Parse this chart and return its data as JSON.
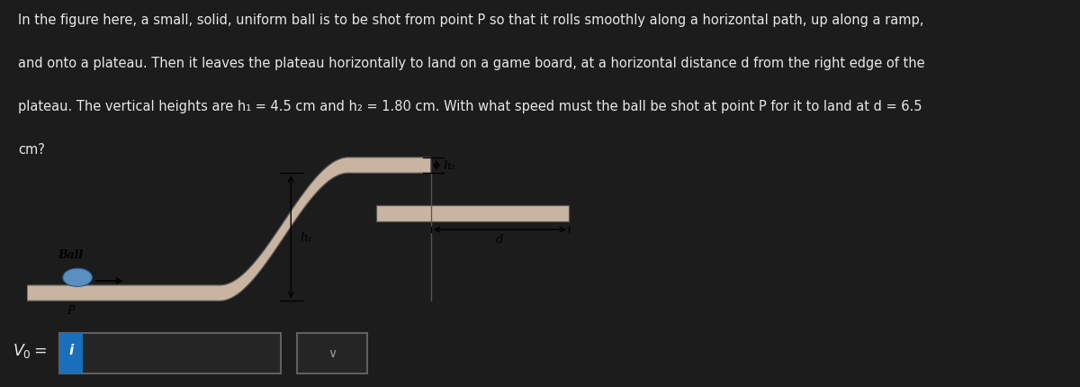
{
  "bg_color": "#1c1c1c",
  "text_color": "#e8e8e8",
  "fig_width": 12.0,
  "fig_height": 4.31,
  "paragraph_text_line1": "In the figure here, a small, solid, uniform ball is to be shot from point P so that it rolls smoothly along a horizontal path, up along a ramp,",
  "paragraph_text_line2": "and onto a plateau. Then it leaves the plateau horizontally to land on a game board, at a horizontal distance d from the right edge of the",
  "paragraph_text_line3": "plateau. The vertical heights are h₁ = 4.5 cm and h₂ = 1.80 cm. With what speed must the ball be shot at point P for it to land at d = 6.5",
  "paragraph_text_line4": "cm?",
  "diagram_bg": "#ffffff",
  "track_color": "#c8b4a0",
  "track_edge": "#555555",
  "ball_color": "#5a8fc0",
  "ball_edge": "#2a5a8a",
  "arrow_color": "#111111",
  "label_Ball": "Ball",
  "label_P": "P",
  "label_h1": "h₁",
  "label_h2": "h₂",
  "label_d": "d",
  "v0_text": "V₀ =",
  "input_box_color": "#252525",
  "input_border_color": "#606060",
  "blue_btn_color": "#1a6fba",
  "dropdown_color": "#252525"
}
